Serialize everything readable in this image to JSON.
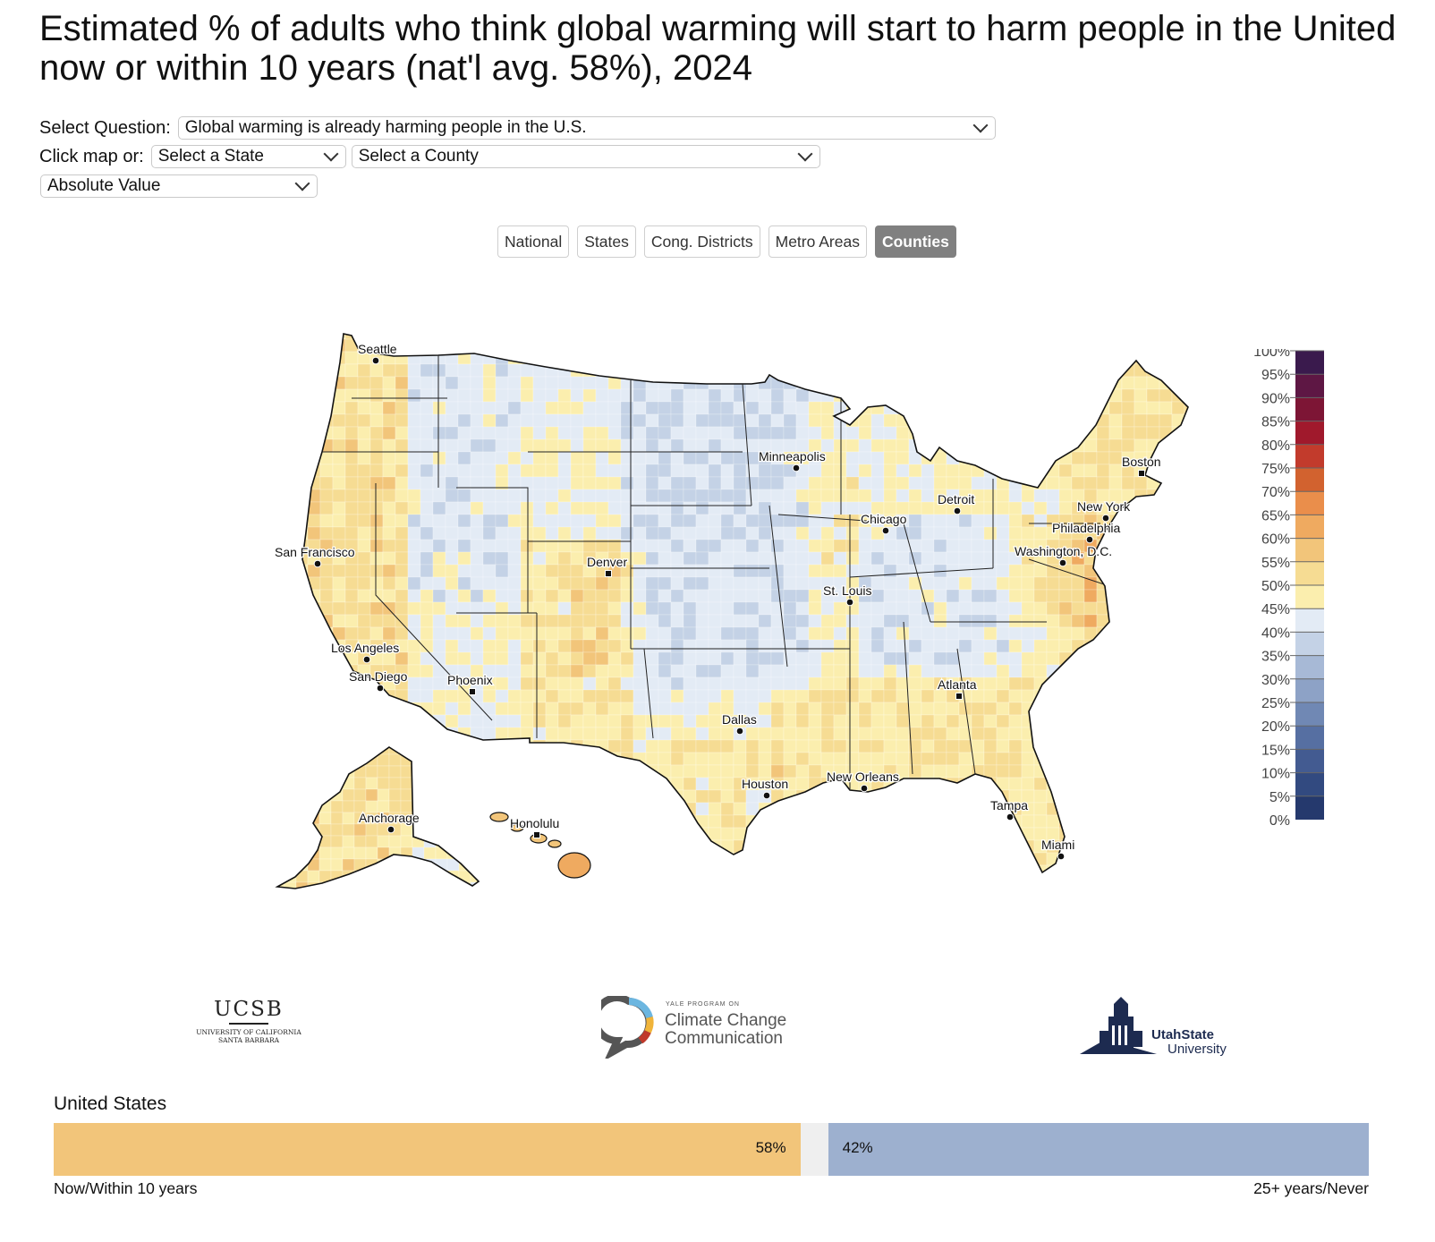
{
  "title": "Estimated % of adults who think global warming will start to harm people in the United now or within 10 years (nat'l avg. 58%), 2024",
  "controls": {
    "question_label": "Select Question:",
    "question_value": "Global warming is already harming people in the U.S.",
    "click_label": "Click map or:",
    "state_value": "Select a State",
    "county_value": "Select a County",
    "value_mode": "Absolute Value"
  },
  "tabs": [
    {
      "label": "National",
      "active": false
    },
    {
      "label": "States",
      "active": false
    },
    {
      "label": "Cong. Districts",
      "active": false
    },
    {
      "label": "Metro Areas",
      "active": false
    },
    {
      "label": "Counties",
      "active": true
    }
  ],
  "map": {
    "cities": [
      {
        "name": "Seattle"
      },
      {
        "name": "San Francisco"
      },
      {
        "name": "Los Angeles"
      },
      {
        "name": "San Diego"
      },
      {
        "name": "Phoenix"
      },
      {
        "name": "Denver"
      },
      {
        "name": "Dallas"
      },
      {
        "name": "Houston"
      },
      {
        "name": "Minneapolis"
      },
      {
        "name": "Chicago"
      },
      {
        "name": "St. Louis"
      },
      {
        "name": "Detroit"
      },
      {
        "name": "New Orleans"
      },
      {
        "name": "Atlanta"
      },
      {
        "name": "Tampa"
      },
      {
        "name": "Miami"
      },
      {
        "name": "Washington, D.C."
      },
      {
        "name": "Philadelphia"
      },
      {
        "name": "New York"
      },
      {
        "name": "Boston"
      },
      {
        "name": "Anchorage"
      },
      {
        "name": "Honolulu"
      }
    ]
  },
  "legend": {
    "labels": [
      "100%",
      "95%",
      "90%",
      "85%",
      "80%",
      "75%",
      "70%",
      "65%",
      "60%",
      "55%",
      "50%",
      "45%",
      "40%",
      "35%",
      "30%",
      "25%",
      "20%",
      "15%",
      "10%",
      "5%",
      "0%"
    ],
    "colors": [
      "#3a1a4d",
      "#5e1744",
      "#7d1535",
      "#a0192c",
      "#c23b2c",
      "#d2622f",
      "#ea8e4b",
      "#efaa60",
      "#f2c57a",
      "#f6dc93",
      "#fbeeae",
      "#e3ebf5",
      "#c4d2e6",
      "#a7b9d6",
      "#8da2c6",
      "#7088b4",
      "#566fa2",
      "#435b91",
      "#324a80",
      "#25396d",
      "#182a57"
    ]
  },
  "logos": {
    "ucsb": {
      "name": "UCSB",
      "line1": "UNIVERSITY OF CALIFORNIA",
      "line2": "SANTA BARBARA"
    },
    "yale": {
      "small": "YALE PROGRAM ON",
      "line1": "Climate Change",
      "line2": "Communication"
    },
    "usu": {
      "line1": "UtahState",
      "line2": "University"
    }
  },
  "summary": {
    "region": "United States",
    "left_value": 58,
    "left_label_text": "58%",
    "right_value": 42,
    "right_label_text": "42%",
    "left_caption": "Now/Within 10 years",
    "right_caption": "25+ years/Never",
    "left_color": "#f2c57a",
    "right_color": "#9db0cf",
    "gap_color": "#efefef"
  }
}
